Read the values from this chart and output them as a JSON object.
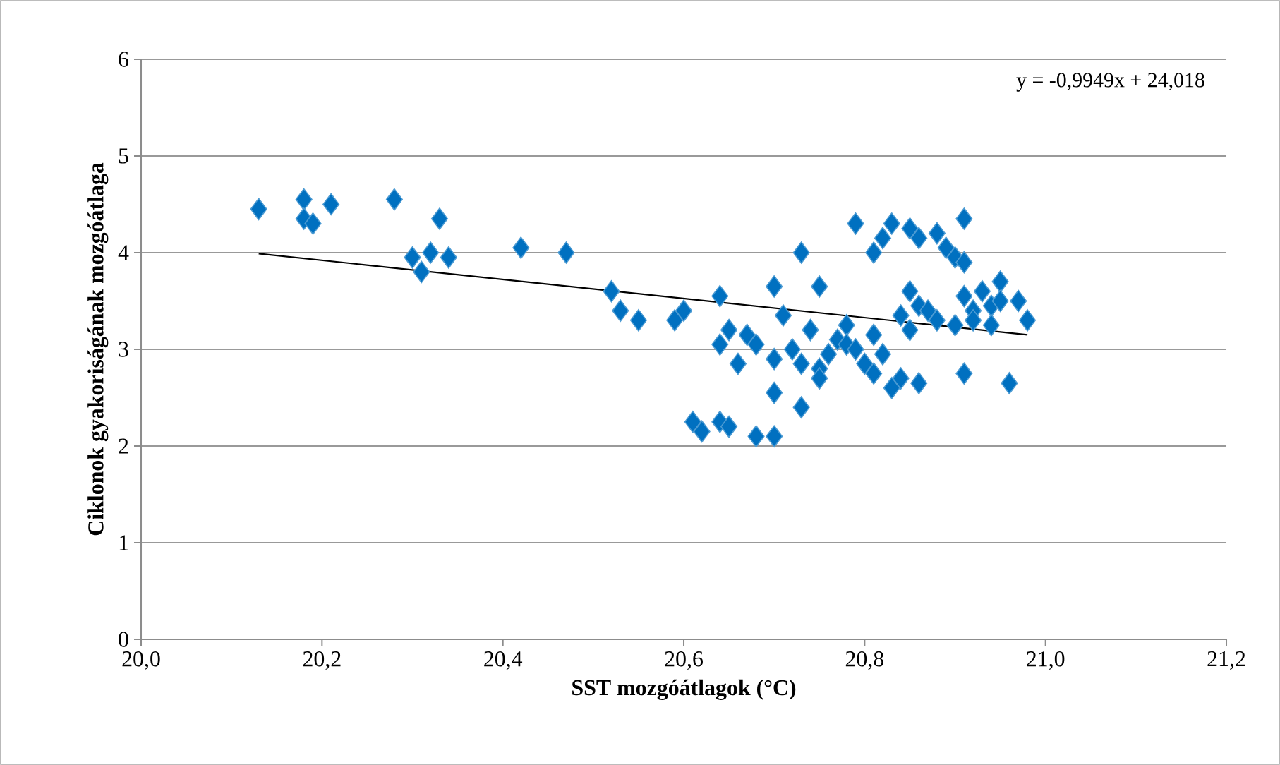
{
  "chart_data": {
    "type": "scatter",
    "xlabel": "SST mozgóátlagok (°C)",
    "ylabel": "Ciklonok gyakoriságának mozgóátlaga",
    "annotations": [
      "y = -0,9949x + 24,018"
    ],
    "xlim": [
      20.0,
      21.2
    ],
    "xticks": [
      {
        "value": 20.0,
        "label": "20,0"
      },
      {
        "value": 20.2,
        "label": "20,2"
      },
      {
        "value": 20.4,
        "label": "20,4"
      },
      {
        "value": 20.6,
        "label": "20,6"
      },
      {
        "value": 20.8,
        "label": "20,8"
      },
      {
        "value": 21.0,
        "label": "21,0"
      },
      {
        "value": 21.2,
        "label": "21,2"
      }
    ],
    "ylim": [
      0,
      6
    ],
    "yticks": [
      0,
      1,
      2,
      3,
      4,
      5,
      6
    ],
    "grid": "y",
    "marker": "diamond",
    "series": [
      {
        "color": "#0070c0",
        "x": [
          20.13,
          20.18,
          20.18,
          20.19,
          20.21,
          20.28,
          20.3,
          20.31,
          20.32,
          20.33,
          20.34,
          20.42,
          20.47,
          20.52,
          20.53,
          20.55,
          20.59,
          20.6,
          20.61,
          20.62,
          20.64,
          20.64,
          20.64,
          20.65,
          20.65,
          20.66,
          20.67,
          20.68,
          20.68,
          20.7,
          20.7,
          20.7,
          20.7,
          20.71,
          20.72,
          20.73,
          20.73,
          20.73,
          20.74,
          20.75,
          20.75,
          20.75,
          20.76,
          20.77,
          20.78,
          20.78,
          20.79,
          20.79,
          20.8,
          20.81,
          20.81,
          20.81,
          20.82,
          20.82,
          20.83,
          20.83,
          20.84,
          20.84,
          20.85,
          20.85,
          20.85,
          20.86,
          20.86,
          20.86,
          20.87,
          20.88,
          20.88,
          20.89,
          20.9,
          20.9,
          20.91,
          20.91,
          20.91,
          20.91,
          20.92,
          20.92,
          20.93,
          20.94,
          20.94,
          20.95,
          20.95,
          20.96,
          20.97,
          20.98
        ],
        "values": [
          4.45,
          4.55,
          4.35,
          4.3,
          4.5,
          4.55,
          3.95,
          3.8,
          4.0,
          4.35,
          3.95,
          4.05,
          4.0,
          3.6,
          3.4,
          3.3,
          3.3,
          3.4,
          2.25,
          2.15,
          3.05,
          3.55,
          2.25,
          3.2,
          2.2,
          2.85,
          3.15,
          3.05,
          2.1,
          3.65,
          2.55,
          2.9,
          2.1,
          3.35,
          3.0,
          4.0,
          2.85,
          2.4,
          3.2,
          3.65,
          2.8,
          2.7,
          2.95,
          3.1,
          3.25,
          3.05,
          3.0,
          4.3,
          2.85,
          2.75,
          3.15,
          4.0,
          4.15,
          2.95,
          2.6,
          4.3,
          3.35,
          2.7,
          3.6,
          3.2,
          4.25,
          4.15,
          3.45,
          2.65,
          3.4,
          3.3,
          4.2,
          4.05,
          3.95,
          3.25,
          4.35,
          3.9,
          3.55,
          2.75,
          3.4,
          3.3,
          3.6,
          3.45,
          3.25,
          3.7,
          3.5,
          2.65,
          3.5,
          3.3
        ]
      },
      {
        "type": "line",
        "marker": "none",
        "color": "#000000",
        "x": [
          20.13,
          20.98
        ],
        "values": [
          3.99,
          3.15
        ]
      }
    ]
  }
}
